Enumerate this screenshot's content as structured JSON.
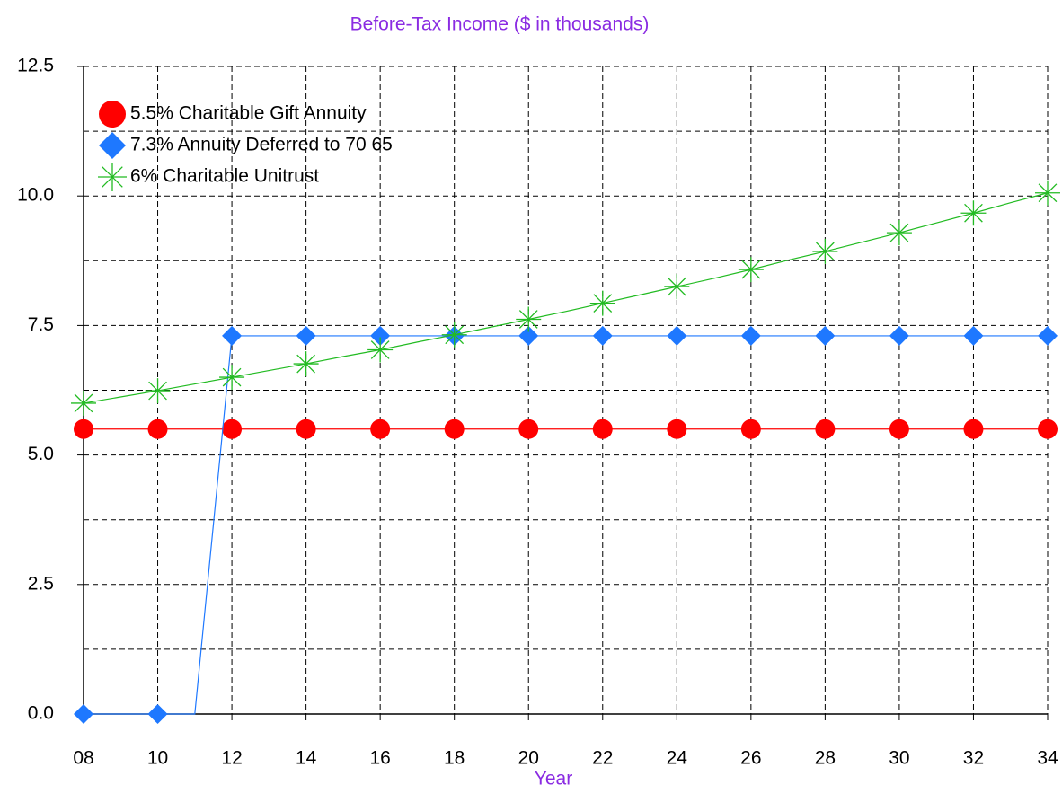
{
  "chart_data": {
    "type": "line",
    "title": "Before-Tax Income ($ in thousands)",
    "x_label": "Year",
    "x": [
      8,
      9,
      10,
      11,
      12,
      13,
      14,
      15,
      16,
      17,
      18,
      19,
      20,
      21,
      22,
      23,
      24,
      25,
      26,
      27,
      28,
      29,
      30,
      31,
      32,
      33,
      34
    ],
    "series": [
      {
        "name": "5.5% Charitable Gift Annuity",
        "color": "#ff0000",
        "marker": "circle",
        "values": [
          5.5,
          5.5,
          5.5,
          5.5,
          5.5,
          5.5,
          5.5,
          5.5,
          5.5,
          5.5,
          5.5,
          5.5,
          5.5,
          5.5,
          5.5,
          5.5,
          5.5,
          5.5,
          5.5,
          5.5,
          5.5,
          5.5,
          5.5,
          5.5,
          5.5,
          5.5,
          5.5
        ]
      },
      {
        "name": "7.3% Annuity Deferred to 70 65",
        "color": "#1e78ff",
        "marker": "diamond",
        "values": [
          0,
          0,
          0,
          0,
          7.3,
          7.3,
          7.3,
          7.3,
          7.3,
          7.3,
          7.3,
          7.3,
          7.3,
          7.3,
          7.3,
          7.3,
          7.3,
          7.3,
          7.3,
          7.3,
          7.3,
          7.3,
          7.3,
          7.3,
          7.3,
          7.3,
          7.3
        ]
      },
      {
        "name": "6% Charitable Unitrust",
        "color": "#22bb22",
        "marker": "asterisk",
        "values": [
          6.0,
          6.12,
          6.24,
          6.37,
          6.5,
          6.63,
          6.76,
          6.9,
          7.03,
          7.18,
          7.32,
          7.47,
          7.62,
          7.77,
          7.93,
          8.09,
          8.25,
          8.41,
          8.58,
          8.76,
          8.93,
          9.11,
          9.29,
          9.48,
          9.67,
          9.87,
          10.06
        ]
      }
    ],
    "xlim": [
      8,
      34
    ],
    "xticks": [
      {
        "value": 8,
        "label": "08"
      },
      10,
      12,
      14,
      16,
      18,
      20,
      22,
      24,
      26,
      28,
      30,
      32,
      34
    ],
    "ylim": [
      0,
      12.5
    ],
    "yticks": [
      {
        "value": 0,
        "label": "0.0"
      },
      2.5,
      {
        "value": 5,
        "label": "5.0"
      },
      7.5,
      {
        "value": 10,
        "label": "10.0"
      },
      12.5
    ],
    "minor_yticks": [
      1.25,
      3.75,
      6.25,
      8.75,
      11.25
    ],
    "grid": true,
    "legend": "top-left"
  }
}
